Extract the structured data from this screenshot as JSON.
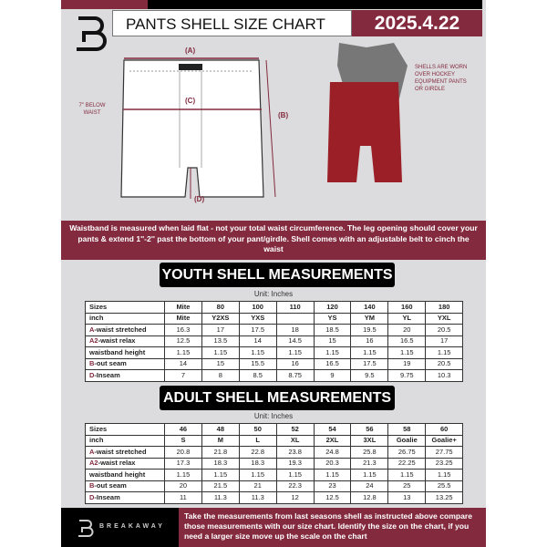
{
  "header": {
    "title": "PANTS SHELL SIZE CHART",
    "date": "2025.4.22"
  },
  "diagram": {
    "label_a": "(A)",
    "label_b": "(B)",
    "label_c": "(C)",
    "label_d": "(D)",
    "below_waist_note": "7'' BELOW WAIST",
    "worn_note": "SHELLS ARE WORN OVER HOCKEY EQUIPMENT PANTS OR GIRDLE"
  },
  "notice": "Waistband is measured when laid flat - not your total waist circumference. The leg opening should cover your pants & extend 1''-2'' past the bottom of your pant/girdle. Shell comes with an adjustable belt to cinch the waist",
  "colors": {
    "accent": "#832a3e",
    "background": "#dcdcde"
  },
  "youth": {
    "title": "YOUTH SHELL MEASUREMENTS",
    "unit": "Unit: Inches",
    "rows": [
      {
        "prefix": "",
        "label": "Sizes",
        "values": [
          "Mite",
          "80",
          "100",
          "110",
          "120",
          "140",
          "160",
          "180"
        ]
      },
      {
        "prefix": "",
        "label": "inch",
        "values": [
          "Mite",
          "Y2XS",
          "YXS",
          "",
          "YS",
          "YM",
          "YL",
          "YXL"
        ]
      },
      {
        "prefix": "A",
        "label": "-waist stretched",
        "values": [
          "16.3",
          "17",
          "17.5",
          "18",
          "18.5",
          "19.5",
          "20",
          "20.5"
        ]
      },
      {
        "prefix": "A2",
        "label": "-waist relax",
        "values": [
          "12.5",
          "13.5",
          "14",
          "14.5",
          "15",
          "16",
          "16.5",
          "17"
        ]
      },
      {
        "prefix": "",
        "label": "waistband height",
        "values": [
          "1.15",
          "1.15",
          "1.15",
          "1.15",
          "1.15",
          "1.15",
          "1.15",
          "1.15"
        ]
      },
      {
        "prefix": "B",
        "label": "-out seam",
        "values": [
          "14",
          "15",
          "15.5",
          "16",
          "16.5",
          "17.5",
          "19",
          "20.5"
        ]
      },
      {
        "prefix": "D",
        "label": "-Inseam",
        "values": [
          "7",
          "8",
          "8.5",
          "8.75",
          "9",
          "9.5",
          "9.75",
          "10.3"
        ]
      }
    ]
  },
  "adult": {
    "title": "ADULT SHELL MEASUREMENTS",
    "unit": "Unit: Inches",
    "rows": [
      {
        "prefix": "",
        "label": "Sizes",
        "values": [
          "46",
          "48",
          "50",
          "52",
          "54",
          "56",
          "58",
          "60"
        ]
      },
      {
        "prefix": "",
        "label": "inch",
        "values": [
          "S",
          "M",
          "L",
          "XL",
          "2XL",
          "3XL",
          "Goalie",
          "Goalie+"
        ]
      },
      {
        "prefix": "A",
        "label": "-waist stretched",
        "values": [
          "20.8",
          "21.8",
          "22.8",
          "23.8",
          "24.8",
          "25.8",
          "26.75",
          "27.75"
        ]
      },
      {
        "prefix": "A2",
        "label": "-waist relax",
        "values": [
          "17.3",
          "18.3",
          "18.3",
          "19.3",
          "20.3",
          "21.3",
          "22.25",
          "23.25"
        ]
      },
      {
        "prefix": "",
        "label": "waistband height",
        "values": [
          "1.15",
          "1.15",
          "1.15",
          "1.15",
          "1.15",
          "1.15",
          "1.15",
          "1.15"
        ]
      },
      {
        "prefix": "B",
        "label": "-out seam",
        "values": [
          "20",
          "21.5",
          "21",
          "22.3",
          "23",
          "24",
          "25",
          "25.5"
        ]
      },
      {
        "prefix": "D",
        "label": "-Inseam",
        "values": [
          "11",
          "11.3",
          "11.3",
          "12",
          "12.5",
          "12.8",
          "13",
          "13.25"
        ]
      }
    ]
  },
  "footer": {
    "brand": "BREAKAWAY",
    "text": "Take the measurements from last seasons shell as instructed above compare those measurements  with our size chart. Identify the size on the chart, if you need a larger size move up the scale on the chart"
  }
}
